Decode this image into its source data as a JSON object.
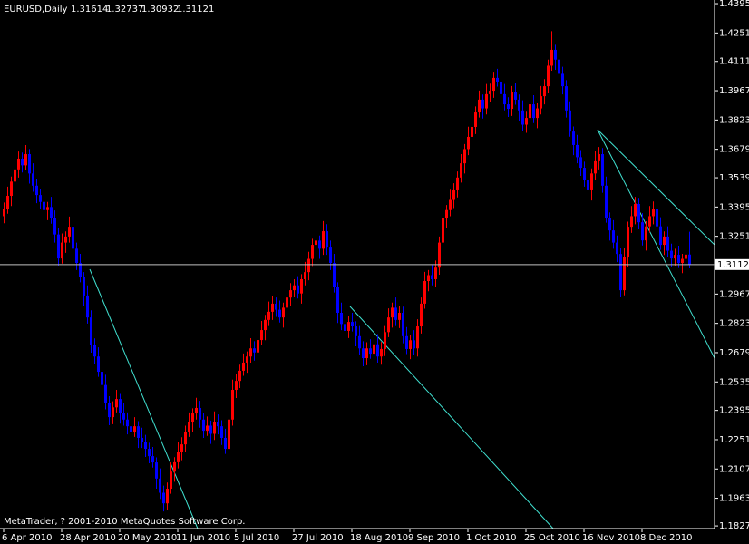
{
  "chart_data": {
    "type": "candlestick",
    "title": "EURUSD,Daily",
    "footer": "MetaTrader, ? 2001-2010 MetaQuotes Software Corp.",
    "bull_color": "#ff0000",
    "bear_color": "#0000ff",
    "ylim": [
      1.1814,
      1.4413
    ],
    "yticks": [
      {
        "value": 1.4395,
        "label": "1.43950"
      },
      {
        "value": 1.4251,
        "label": "1.42510"
      },
      {
        "value": 1.4111,
        "label": "1.41110"
      },
      {
        "value": 1.3967,
        "label": "1.39670"
      },
      {
        "value": 1.3823,
        "label": "1.38230"
      },
      {
        "value": 1.3679,
        "label": "1.36790"
      },
      {
        "value": 1.3539,
        "label": "1.35390"
      },
      {
        "value": 1.3395,
        "label": "1.33950"
      },
      {
        "value": 1.3251,
        "label": "1.32510"
      },
      {
        "value": 1.2967,
        "label": "1.29670"
      },
      {
        "value": 1.2823,
        "label": "1.28230"
      },
      {
        "value": 1.2679,
        "label": "1.26790"
      },
      {
        "value": 1.2535,
        "label": "1.25350"
      },
      {
        "value": 1.2395,
        "label": "1.23950"
      },
      {
        "value": 1.2251,
        "label": "1.22510"
      },
      {
        "value": 1.2107,
        "label": "1.21070"
      },
      {
        "value": 1.1963,
        "label": "1.19630"
      },
      {
        "value": 1.1827,
        "label": "1.18270"
      }
    ],
    "categories": [
      "6 Apr 2010",
      null,
      null,
      null,
      null,
      null,
      null,
      null,
      null,
      null,
      null,
      null,
      null,
      null,
      null,
      null,
      "28 Apr 2010",
      null,
      null,
      null,
      null,
      null,
      null,
      null,
      null,
      null,
      null,
      null,
      null,
      null,
      null,
      null,
      "20 May 2010",
      null,
      null,
      null,
      null,
      null,
      null,
      null,
      null,
      null,
      null,
      null,
      null,
      null,
      null,
      null,
      "11 Jun 2010",
      null,
      null,
      null,
      null,
      null,
      null,
      null,
      null,
      null,
      null,
      null,
      null,
      null,
      null,
      null,
      "5 Jul 2010",
      null,
      null,
      null,
      null,
      null,
      null,
      null,
      null,
      null,
      null,
      null,
      null,
      null,
      null,
      null,
      "27 Jul 2010",
      null,
      null,
      null,
      null,
      null,
      null,
      null,
      null,
      null,
      null,
      null,
      null,
      null,
      null,
      null,
      "18 Aug 2010",
      null,
      null,
      null,
      null,
      null,
      null,
      null,
      null,
      null,
      null,
      null,
      null,
      null,
      null,
      null,
      "9 Sep 2010",
      null,
      null,
      null,
      null,
      null,
      null,
      null,
      null,
      null,
      null,
      null,
      null,
      null,
      null,
      null,
      "1 Oct 2010",
      null,
      null,
      null,
      null,
      null,
      null,
      null,
      null,
      null,
      null,
      null,
      null,
      null,
      null,
      null,
      "25 Oct 2010",
      null,
      null,
      null,
      null,
      null,
      null,
      null,
      null,
      null,
      null,
      null,
      null,
      null,
      null,
      null,
      "16 Nov 2010",
      null,
      null,
      null,
      null,
      null,
      null,
      null,
      null,
      null,
      null,
      null,
      null,
      null,
      null,
      null,
      "8 Dec 2010",
      null,
      null,
      null,
      null,
      null,
      null,
      null,
      null,
      null,
      null,
      null,
      null,
      null
    ],
    "open": [
      1.335,
      1.3387,
      1.345,
      1.352,
      1.358,
      1.3633,
      1.36,
      1.3655,
      1.356,
      1.35,
      1.3454,
      1.342,
      1.338,
      1.3395,
      1.3343,
      1.326,
      1.3142,
      1.322,
      1.325,
      1.3298,
      1.319,
      1.312,
      1.305,
      1.296,
      1.2852,
      1.2719,
      1.266,
      1.2585,
      1.252,
      1.243,
      1.2362,
      1.241,
      1.2451,
      1.238,
      1.235,
      1.2317,
      1.229,
      1.2317,
      1.226,
      1.224,
      1.2206,
      1.217,
      1.2139,
      1.206,
      1.199,
      1.1938,
      1.201,
      1.2094,
      1.214,
      1.219,
      1.2228,
      1.229,
      1.234,
      1.238,
      1.2407,
      1.235,
      1.2295,
      1.232,
      1.228,
      1.234,
      1.2317,
      1.226,
      1.2206,
      1.235,
      1.2496,
      1.254,
      1.259,
      1.263,
      1.266,
      1.27,
      1.268,
      1.2741,
      1.279,
      1.284,
      1.288,
      1.292,
      1.289,
      1.2852,
      1.29,
      1.295,
      1.2986,
      1.301,
      1.297,
      1.304,
      1.3075,
      1.314,
      1.3209,
      1.323,
      1.319,
      1.3276,
      1.32,
      1.312,
      1.3,
      1.2875,
      1.282,
      1.2786,
      1.283,
      1.2808,
      1.276,
      1.27,
      1.2652,
      1.27,
      1.2674,
      1.272,
      1.266,
      1.2697,
      1.278,
      1.2852,
      1.29,
      1.284,
      1.2875,
      1.276,
      1.2697,
      1.274,
      1.27,
      1.2808,
      1.292,
      1.3031,
      1.306,
      1.304,
      1.3097,
      1.322,
      1.3343,
      1.338,
      1.343,
      1.3477,
      1.354,
      1.361,
      1.368,
      1.374,
      1.3789,
      1.386,
      1.3923,
      1.388,
      1.395,
      1.3967,
      1.403,
      1.4012,
      1.395,
      1.39,
      1.3878,
      1.396,
      1.3923,
      1.387,
      1.38,
      1.3833,
      1.39,
      1.3833,
      1.388,
      1.394,
      1.3989,
      1.409,
      1.4168,
      1.412,
      1.405,
      1.3989,
      1.387,
      1.3766,
      1.37,
      1.364,
      1.3588,
      1.353,
      1.3477,
      1.356,
      1.362,
      1.3655,
      1.35,
      1.3343,
      1.328,
      1.322,
      1.3164,
      1.2986,
      1.315,
      1.3298,
      1.335,
      1.341,
      1.332,
      1.3231,
      1.33,
      1.335,
      1.3387,
      1.33,
      1.3209,
      1.325,
      1.318,
      1.3142,
      1.316,
      1.312,
      1.314,
      1.31614
    ],
    "high": [
      1.3417,
      1.3495,
      1.3545,
      1.363,
      1.3668,
      1.3663,
      1.37,
      1.368,
      1.361,
      1.3535,
      1.3484,
      1.3465,
      1.342,
      1.3445,
      1.3378,
      1.329,
      1.3265,
      1.3275,
      1.3348,
      1.3333,
      1.322,
      1.3165,
      1.3075,
      1.301,
      1.2887,
      1.2749,
      1.2705,
      1.261,
      1.257,
      1.2465,
      1.244,
      1.2496,
      1.2476,
      1.243,
      1.2385,
      1.2347,
      1.2362,
      1.2342,
      1.231,
      1.2275,
      1.2236,
      1.2215,
      1.2164,
      1.211,
      1.2025,
      1.204,
      1.2139,
      1.2165,
      1.224,
      1.2263,
      1.232,
      1.2385,
      1.2405,
      1.2457,
      1.2442,
      1.238,
      1.2365,
      1.2345,
      1.239,
      1.2375,
      1.2347,
      1.2305,
      1.2375,
      1.2546,
      1.2575,
      1.262,
      1.2675,
      1.2685,
      1.275,
      1.2735,
      1.2771,
      1.2835,
      1.2865,
      1.293,
      1.2955,
      1.295,
      1.2935,
      1.2925,
      1.3,
      1.3021,
      1.304,
      1.3055,
      1.3065,
      1.3125,
      1.3175,
      1.3239,
      1.3275,
      1.3255,
      1.3326,
      1.3311,
      1.323,
      1.3165,
      1.3025,
      1.2925,
      1.2855,
      1.286,
      1.2875,
      1.2833,
      1.281,
      1.2735,
      1.273,
      1.2745,
      1.2745,
      1.277,
      1.2732,
      1.281,
      1.2897,
      1.2925,
      1.295,
      1.291,
      1.2905,
      1.2805,
      1.2765,
      1.279,
      1.2843,
      1.295,
      1.3076,
      1.3085,
      1.311,
      1.3132,
      1.325,
      1.3388,
      1.3405,
      1.348,
      1.3512,
      1.357,
      1.3655,
      1.3705,
      1.379,
      1.3824,
      1.389,
      1.3968,
      1.3948,
      1.4,
      1.4002,
      1.406,
      1.4075,
      1.4037,
      1.4,
      1.3935,
      1.399,
      1.4005,
      1.3948,
      1.392,
      1.3868,
      1.393,
      1.3945,
      1.3905,
      1.399,
      1.4024,
      1.412,
      1.426,
      1.4193,
      1.417,
      1.4085,
      1.4019,
      1.3915,
      1.3791,
      1.375,
      1.3675,
      1.3618,
      1.3575,
      1.3585,
      1.367,
      1.369,
      1.3685,
      1.3545,
      1.3368,
      1.333,
      1.3255,
      1.3194,
      1.3195,
      1.3323,
      1.34,
      1.3445,
      1.344,
      1.3365,
      1.3325,
      1.34,
      1.3422,
      1.3417,
      1.3345,
      1.3275,
      1.33,
      1.3215,
      1.319,
      1.3205,
      1.3165,
      1.3211,
      1.32737
    ],
    "low": [
      1.3315,
      1.3362,
      1.34,
      1.349,
      1.354,
      1.3565,
      1.3575,
      1.351,
      1.347,
      1.3414,
      1.3385,
      1.3355,
      1.333,
      1.3313,
      1.322,
      1.3107,
      1.3117,
      1.317,
      1.322,
      1.315,
      1.3085,
      1.3025,
      1.291,
      1.2822,
      1.2679,
      1.2625,
      1.256,
      1.247,
      1.24,
      1.2322,
      1.2327,
      1.2385,
      1.233,
      1.232,
      1.2277,
      1.2255,
      1.2265,
      1.221,
      1.221,
      1.2166,
      1.2135,
      1.2114,
      1.201,
      1.196,
      1.1898,
      1.1903,
      1.1985,
      1.2044,
      1.211,
      1.215,
      1.2193,
      1.2265,
      1.229,
      1.235,
      1.231,
      1.226,
      1.227,
      1.223,
      1.225,
      1.2277,
      1.2225,
      1.2181,
      1.2156,
      1.232,
      1.2456,
      1.2505,
      1.2565,
      1.258,
      1.263,
      1.264,
      1.2645,
      1.2716,
      1.274,
      1.281,
      1.284,
      1.2855,
      1.2827,
      1.2802,
      1.287,
      1.291,
      1.2951,
      1.2945,
      1.292,
      1.301,
      1.3035,
      1.3105,
      1.3184,
      1.314,
      1.316,
      1.316,
      1.3085,
      1.2975,
      1.2825,
      1.279,
      1.2746,
      1.2751,
      1.2783,
      1.271,
      1.267,
      1.2612,
      1.2617,
      1.2649,
      1.2624,
      1.263,
      1.262,
      1.2662,
      1.2755,
      1.2802,
      1.281,
      1.28,
      1.2725,
      1.2672,
      1.2647,
      1.267,
      1.266,
      1.2773,
      1.2895,
      1.2981,
      1.301,
      1.3,
      1.3062,
      1.3195,
      1.3293,
      1.335,
      1.339,
      1.3442,
      1.3515,
      1.356,
      1.365,
      1.37,
      1.3754,
      1.3835,
      1.383,
      1.385,
      1.391,
      1.3932,
      1.3987,
      1.39,
      1.387,
      1.3838,
      1.3843,
      1.3898,
      1.382,
      1.377,
      1.376,
      1.3798,
      1.3808,
      1.3783,
      1.385,
      1.39,
      1.3954,
      1.4065,
      1.407,
      1.402,
      1.3949,
      1.3835,
      1.3741,
      1.365,
      1.361,
      1.3548,
      1.3495,
      1.3452,
      1.3427,
      1.353,
      1.358,
      1.3465,
      1.3318,
      1.323,
      1.319,
      1.3124,
      1.2951,
      1.2961,
      1.31,
      1.3268,
      1.331,
      1.3285,
      1.3206,
      1.3181,
      1.327,
      1.331,
      1.3265,
      1.3184,
      1.3159,
      1.315,
      1.3102,
      1.3107,
      1.3095,
      1.307,
      1.311,
      1.30932
    ],
    "close": [
      1.3387,
      1.345,
      1.352,
      1.358,
      1.3633,
      1.36,
      1.3655,
      1.356,
      1.35,
      1.3454,
      1.342,
      1.338,
      1.3395,
      1.3343,
      1.326,
      1.3142,
      1.322,
      1.325,
      1.3298,
      1.319,
      1.312,
      1.305,
      1.296,
      1.2852,
      1.2719,
      1.266,
      1.2585,
      1.252,
      1.243,
      1.2362,
      1.241,
      1.2451,
      1.238,
      1.235,
      1.2317,
      1.229,
      1.2317,
      1.226,
      1.224,
      1.2206,
      1.217,
      1.2139,
      1.206,
      1.199,
      1.1938,
      1.201,
      1.2094,
      1.214,
      1.219,
      1.2228,
      1.229,
      1.234,
      1.238,
      1.2407,
      1.235,
      1.2295,
      1.232,
      1.228,
      1.234,
      1.2317,
      1.226,
      1.2206,
      1.235,
      1.2496,
      1.254,
      1.259,
      1.263,
      1.266,
      1.27,
      1.268,
      1.2741,
      1.279,
      1.284,
      1.288,
      1.292,
      1.289,
      1.2852,
      1.29,
      1.295,
      1.2986,
      1.301,
      1.297,
      1.304,
      1.3075,
      1.314,
      1.3209,
      1.323,
      1.319,
      1.3276,
      1.32,
      1.312,
      1.3,
      1.2875,
      1.282,
      1.2786,
      1.283,
      1.2808,
      1.276,
      1.27,
      1.2652,
      1.27,
      1.2674,
      1.272,
      1.266,
      1.2697,
      1.278,
      1.2852,
      1.29,
      1.284,
      1.2875,
      1.276,
      1.2697,
      1.274,
      1.27,
      1.2808,
      1.292,
      1.3031,
      1.306,
      1.304,
      1.3097,
      1.322,
      1.3343,
      1.338,
      1.343,
      1.3477,
      1.354,
      1.361,
      1.368,
      1.374,
      1.3789,
      1.386,
      1.3923,
      1.388,
      1.395,
      1.3967,
      1.403,
      1.4012,
      1.395,
      1.39,
      1.3878,
      1.396,
      1.3923,
      1.387,
      1.38,
      1.3833,
      1.39,
      1.3833,
      1.388,
      1.394,
      1.3989,
      1.409,
      1.4168,
      1.412,
      1.405,
      1.3989,
      1.387,
      1.3766,
      1.37,
      1.364,
      1.3588,
      1.353,
      1.3477,
      1.356,
      1.362,
      1.3655,
      1.35,
      1.3343,
      1.328,
      1.322,
      1.3164,
      1.2986,
      1.315,
      1.3298,
      1.335,
      1.341,
      1.332,
      1.3231,
      1.33,
      1.335,
      1.3387,
      1.33,
      1.3209,
      1.325,
      1.318,
      1.3142,
      1.316,
      1.312,
      1.314,
      1.3161,
      1.31121
    ]
  }
}
